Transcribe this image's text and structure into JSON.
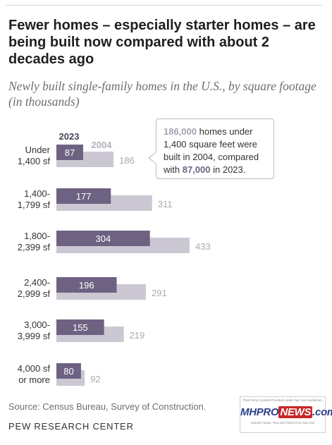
{
  "title": "Fewer homes – especially starter homes – are being built now compared with about 2 decades ago",
  "subtitle": "Newly built single-family homes in the U.S., by square footage (in thousands)",
  "source": "Source: Census Bureau, Survey of Construction.",
  "org": "PEW RESEARCH CENTER",
  "callout": {
    "v1": "186,000",
    "t1": " homes under 1,400 square feet were built in 2004, compared with ",
    "v2": "87,000",
    "t2": " in 2023."
  },
  "watermark": {
    "top": "Third Party Content Provided Under Fair Use Guidelines.",
    "logo_a": "MHPRO",
    "logo_b": "NEWS",
    "logo_c": ".com",
    "bottom": "Industry News, Tips and Views Pros Can Use"
  },
  "colors": {
    "y2023": "#6e6282",
    "y2004": "#ccc8d3",
    "label2004": "#aaaaaa"
  },
  "chart_data": {
    "type": "bar",
    "orientation": "horizontal",
    "categories": [
      [
        "Under",
        "1,400 sf"
      ],
      [
        "1,400-",
        "1,799 sf"
      ],
      [
        "1,800-",
        "2,399 sf"
      ],
      [
        "2,400-",
        "2,999 sf"
      ],
      [
        "3,000-",
        "3,999 sf"
      ],
      [
        "4,000 sf",
        "or more"
      ]
    ],
    "series": [
      {
        "name": "2023",
        "values": [
          87,
          177,
          304,
          196,
          155,
          80
        ]
      },
      {
        "name": "2004",
        "values": [
          186,
          311,
          433,
          291,
          219,
          92
        ]
      }
    ],
    "grid": false
  }
}
